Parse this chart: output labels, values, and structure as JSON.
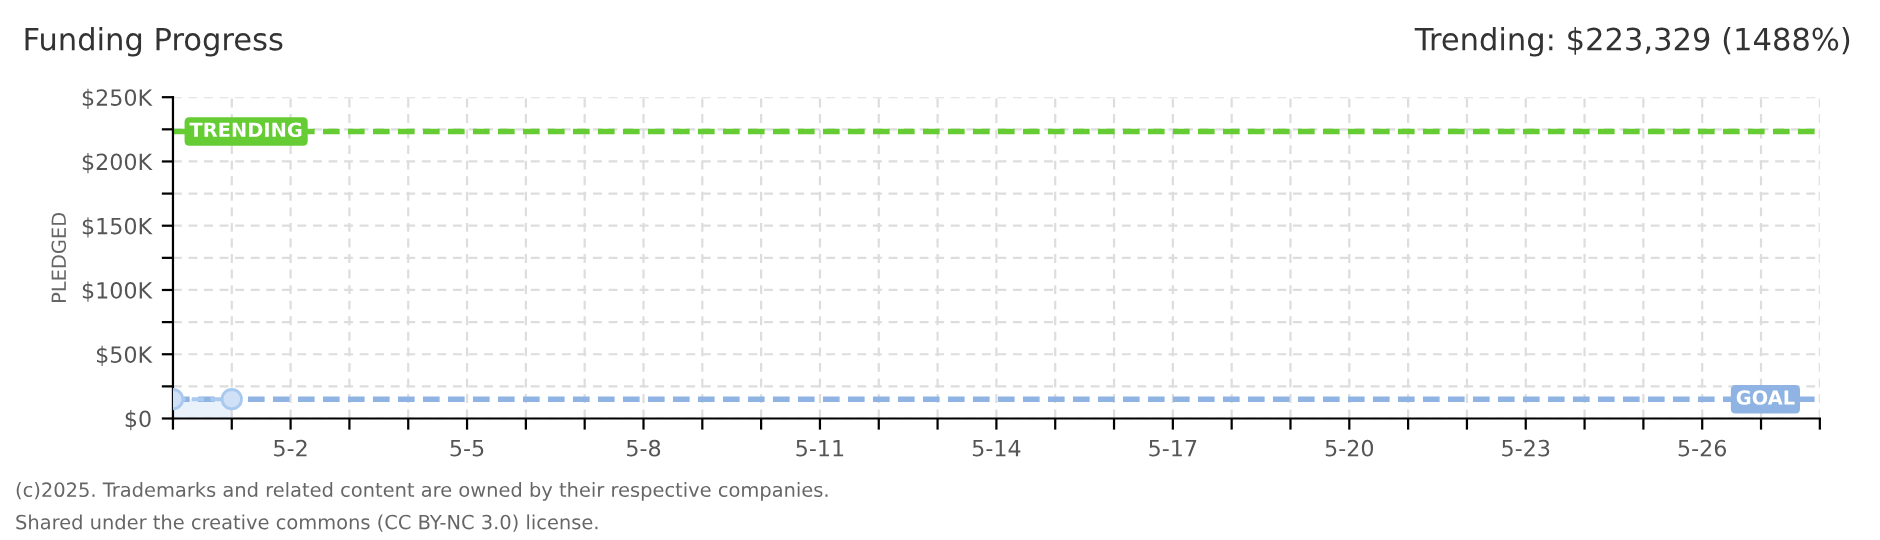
{
  "chart_data": {
    "type": "area",
    "title": "Funding Progress",
    "subtitle": "Trending: $223,329 (1488%)",
    "ylabel": "PLEDGED",
    "x": [
      "2025-04-30",
      "2025-05-01"
    ],
    "series": [
      {
        "color": "#a9c9ee",
        "values": [
          15000,
          15000
        ]
      }
    ],
    "marker": "circle",
    "line_style": "dashed",
    "grid": true,
    "legend": false,
    "xlim": [
      "2025-04-30",
      "2025-05-28"
    ],
    "xticks": [
      {
        "value": "2025-04-30",
        "label": null
      },
      {
        "value": "2025-05-01",
        "label": null
      },
      {
        "value": "2025-05-02",
        "label": "5-2"
      },
      {
        "value": "2025-05-03",
        "label": null
      },
      {
        "value": "2025-05-04",
        "label": null
      },
      {
        "value": "2025-05-05",
        "label": "5-5"
      },
      {
        "value": "2025-05-06",
        "label": null
      },
      {
        "value": "2025-05-07",
        "label": null
      },
      {
        "value": "2025-05-08",
        "label": "5-8"
      },
      {
        "value": "2025-05-09",
        "label": null
      },
      {
        "value": "2025-05-10",
        "label": null
      },
      {
        "value": "2025-05-11",
        "label": "5-11"
      },
      {
        "value": "2025-05-12",
        "label": null
      },
      {
        "value": "2025-05-13",
        "label": null
      },
      {
        "value": "2025-05-14",
        "label": "5-14"
      },
      {
        "value": "2025-05-15",
        "label": null
      },
      {
        "value": "2025-05-16",
        "label": null
      },
      {
        "value": "2025-05-17",
        "label": "5-17"
      },
      {
        "value": "2025-05-18",
        "label": null
      },
      {
        "value": "2025-05-19",
        "label": null
      },
      {
        "value": "2025-05-20",
        "label": "5-20"
      },
      {
        "value": "2025-05-21",
        "label": null
      },
      {
        "value": "2025-05-22",
        "label": null
      },
      {
        "value": "2025-05-23",
        "label": "5-23"
      },
      {
        "value": "2025-05-24",
        "label": null
      },
      {
        "value": "2025-05-25",
        "label": null
      },
      {
        "value": "2025-05-26",
        "label": "5-26"
      },
      {
        "value": "2025-05-27",
        "label": null
      },
      {
        "value": "2025-05-28",
        "label": null
      }
    ],
    "ylim": [
      0,
      250000
    ],
    "yticks": [
      {
        "value": 0,
        "label": "$0"
      },
      {
        "value": 25000,
        "label": null
      },
      {
        "value": 50000,
        "label": "$50K"
      },
      {
        "value": 75000,
        "label": null
      },
      {
        "value": 100000,
        "label": "$100K"
      },
      {
        "value": 125000,
        "label": null
      },
      {
        "value": 150000,
        "label": "$150K"
      },
      {
        "value": 175000,
        "label": null
      },
      {
        "value": 200000,
        "label": "$200K"
      },
      {
        "value": 225000,
        "label": null
      },
      {
        "value": 250000,
        "label": "$250K"
      }
    ],
    "ref_lines": [
      {
        "axis": "y",
        "value": 223329,
        "label": "TRENDING",
        "color": "#66cc33",
        "line_style": "dashed"
      },
      {
        "axis": "y",
        "value": 15000,
        "label": "GOAL",
        "color": "#8fb4e3",
        "line_style": "dashed"
      }
    ],
    "annotations": [
      "(c)2025. Trademarks and related content are owned by their respective companies.",
      "Shared under the creative commons (CC BY-NC 3.0) license."
    ]
  }
}
